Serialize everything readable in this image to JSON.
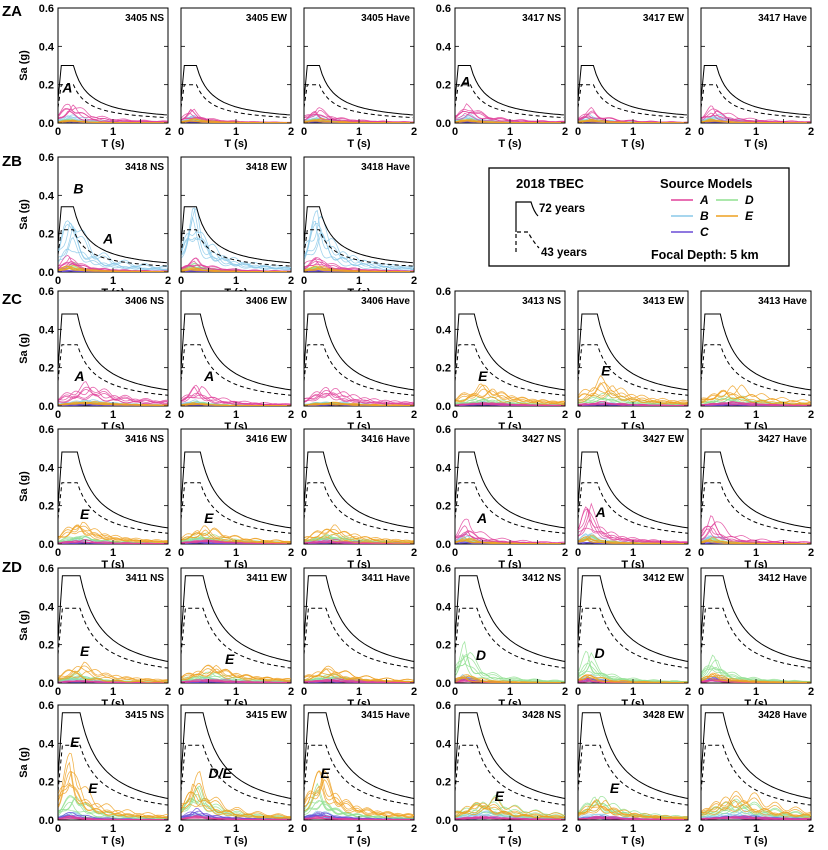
{
  "figure": {
    "sa_label": "Sa (g)",
    "t_label": "T (s)",
    "y_ticks": [
      "0.0",
      "0.2",
      "0.4",
      "0.6"
    ],
    "x_ticks": [
      "0",
      "1",
      "2"
    ],
    "zone_labels": [
      "ZA",
      "ZB",
      "ZC",
      "ZD"
    ]
  },
  "legend": {
    "title": "2018 TBEC",
    "label_72": "72 years",
    "label_43": "43 years",
    "source_title": "Source Models",
    "models": [
      {
        "label": "A",
        "color": "#e0409a"
      },
      {
        "label": "B",
        "color": "#8ac8e8"
      },
      {
        "label": "C",
        "color": "#6a4cd6"
      },
      {
        "label": "D",
        "color": "#90e090"
      },
      {
        "label": "E",
        "color": "#eea020"
      }
    ],
    "focal_depth": "Focal Depth: 5 km"
  },
  "chart_data": {
    "type": "line",
    "xlabel": "T (s)",
    "ylabel": "Sa (g)",
    "xlim": [
      0,
      2
    ],
    "ylim": [
      0,
      0.6
    ],
    "zones": [
      {
        "name": "ZA",
        "spec72": {
          "pga": 0.12,
          "sds": 0.3,
          "ta": 0.06,
          "tb": 0.28
        },
        "spec43": {
          "pga": 0.08,
          "sds": 0.2,
          "ta": 0.06,
          "tb": 0.28
        }
      },
      {
        "name": "ZB",
        "spec72": {
          "pga": 0.14,
          "sds": 0.34,
          "ta": 0.06,
          "tb": 0.28
        },
        "spec43": {
          "pga": 0.09,
          "sds": 0.22,
          "ta": 0.06,
          "tb": 0.28
        }
      },
      {
        "name": "ZC",
        "spec72": {
          "pga": 0.19,
          "sds": 0.48,
          "ta": 0.07,
          "tb": 0.35
        },
        "spec43": {
          "pga": 0.13,
          "sds": 0.32,
          "ta": 0.07,
          "tb": 0.35
        }
      },
      {
        "name": "ZD",
        "spec72": {
          "pga": 0.22,
          "sds": 0.56,
          "ta": 0.08,
          "tb": 0.4
        },
        "spec43": {
          "pga": 0.15,
          "sds": 0.39,
          "ta": 0.08,
          "tb": 0.4
        }
      }
    ],
    "panels": [
      {
        "zone": "ZA",
        "station": "3405 NS",
        "annotations": [
          {
            "text": "A",
            "t": 0.08,
            "sa": 0.16
          }
        ],
        "peaks": {
          "A": 0.1,
          "B": 0.04,
          "C": 0.01,
          "D": 0.02,
          "E": 0.02
        },
        "peak_t": 0.25
      },
      {
        "zone": "ZA",
        "station": "3405 EW",
        "annotations": [],
        "peaks": {
          "A": 0.07,
          "B": 0.04,
          "C": 0.01,
          "D": 0.02,
          "E": 0.02
        },
        "peak_t": 0.25
      },
      {
        "zone": "ZA",
        "station": "3405 Have",
        "annotations": [],
        "peaks": {
          "A": 0.1,
          "B": 0.04,
          "C": 0.01,
          "D": 0.02,
          "E": 0.02
        },
        "peak_t": 0.25
      },
      {
        "zone": "ZA",
        "station": "3417 NS",
        "annotations": [
          {
            "text": "A",
            "t": 0.1,
            "sa": 0.19
          }
        ],
        "peaks": {
          "A": 0.1,
          "B": 0.04,
          "C": 0.01,
          "D": 0.02,
          "E": 0.02
        },
        "peak_t": 0.25
      },
      {
        "zone": "ZA",
        "station": "3417 EW",
        "annotations": [],
        "peaks": {
          "A": 0.07,
          "B": 0.04,
          "C": 0.01,
          "D": 0.02,
          "E": 0.02
        },
        "peak_t": 0.25
      },
      {
        "zone": "ZA",
        "station": "3417 Have",
        "annotations": [],
        "peaks": {
          "A": 0.08,
          "B": 0.04,
          "C": 0.01,
          "D": 0.02,
          "E": 0.02
        },
        "peak_t": 0.25
      },
      {
        "zone": "ZB",
        "station": "3418 NS",
        "annotations": [
          {
            "text": "B",
            "t": 0.28,
            "sa": 0.41
          },
          {
            "text": "A",
            "t": 0.82,
            "sa": 0.15
          }
        ],
        "peaks": {
          "A": 0.09,
          "B": 0.3,
          "C": 0.01,
          "D": 0.04,
          "E": 0.03
        },
        "peak_t": 0.25
      },
      {
        "zone": "ZB",
        "station": "3418 EW",
        "annotations": [],
        "peaks": {
          "A": 0.09,
          "B": 0.28,
          "C": 0.01,
          "D": 0.04,
          "E": 0.03
        },
        "peak_t": 0.25
      },
      {
        "zone": "ZB",
        "station": "3418 Have",
        "annotations": [],
        "peaks": {
          "A": 0.09,
          "B": 0.28,
          "C": 0.01,
          "D": 0.04,
          "E": 0.03
        },
        "peak_t": 0.25
      },
      {
        "zone": "ZC",
        "station": "3406 NS",
        "annotations": [
          {
            "text": "A",
            "t": 0.3,
            "sa": 0.13
          }
        ],
        "peaks": {
          "A": 0.1,
          "B": 0.03,
          "C": 0.01,
          "D": 0.02,
          "E": 0.02
        },
        "peak_t": 0.55
      },
      {
        "zone": "ZC",
        "station": "3406 EW",
        "annotations": [
          {
            "text": "A",
            "t": 0.42,
            "sa": 0.13
          }
        ],
        "peaks": {
          "A": 0.1,
          "B": 0.03,
          "C": 0.01,
          "D": 0.02,
          "E": 0.02
        },
        "peak_t": 0.3
      },
      {
        "zone": "ZC",
        "station": "3406 Have",
        "annotations": [],
        "peaks": {
          "A": 0.09,
          "B": 0.03,
          "C": 0.01,
          "D": 0.02,
          "E": 0.02
        },
        "peak_t": 0.55
      },
      {
        "zone": "ZC",
        "station": "3413 NS",
        "annotations": [
          {
            "text": "E",
            "t": 0.42,
            "sa": 0.13
          }
        ],
        "peaks": {
          "A": 0.02,
          "B": 0.02,
          "C": 0.01,
          "D": 0.05,
          "E": 0.1
        },
        "peak_t": 0.55
      },
      {
        "zone": "ZC",
        "station": "3413 EW",
        "annotations": [
          {
            "text": "E",
            "t": 0.42,
            "sa": 0.16
          }
        ],
        "peaks": {
          "A": 0.02,
          "B": 0.02,
          "C": 0.01,
          "D": 0.06,
          "E": 0.14
        },
        "peak_t": 0.55
      },
      {
        "zone": "ZC",
        "station": "3413 Have",
        "annotations": [],
        "peaks": {
          "A": 0.02,
          "B": 0.02,
          "C": 0.01,
          "D": 0.05,
          "E": 0.11
        },
        "peak_t": 0.6
      },
      {
        "zone": "ZC",
        "station": "3416 NS",
        "annotations": [
          {
            "text": "E",
            "t": 0.4,
            "sa": 0.13
          }
        ],
        "peaks": {
          "A": 0.02,
          "B": 0.03,
          "C": 0.01,
          "D": 0.05,
          "E": 0.11
        },
        "peak_t": 0.45
      },
      {
        "zone": "ZC",
        "station": "3416 EW",
        "annotations": [
          {
            "text": "E",
            "t": 0.42,
            "sa": 0.11
          }
        ],
        "peaks": {
          "A": 0.02,
          "B": 0.03,
          "C": 0.01,
          "D": 0.05,
          "E": 0.08
        },
        "peak_t": 0.45
      },
      {
        "zone": "ZC",
        "station": "3416 Have",
        "annotations": [],
        "peaks": {
          "A": 0.02,
          "B": 0.03,
          "C": 0.01,
          "D": 0.05,
          "E": 0.08
        },
        "peak_t": 0.45
      },
      {
        "zone": "ZC",
        "station": "3427 NS",
        "annotations": [
          {
            "text": "A",
            "t": 0.4,
            "sa": 0.11
          }
        ],
        "peaks": {
          "A": 0.13,
          "B": 0.05,
          "C": 0.01,
          "D": 0.03,
          "E": 0.03
        },
        "peak_t": 0.2
      },
      {
        "zone": "ZC",
        "station": "3427 EW",
        "annotations": [
          {
            "text": "A",
            "t": 0.32,
            "sa": 0.14
          }
        ],
        "peaks": {
          "A": 0.2,
          "B": 0.06,
          "C": 0.01,
          "D": 0.04,
          "E": 0.04
        },
        "peak_t": 0.2
      },
      {
        "zone": "ZC",
        "station": "3427 Have",
        "annotations": [],
        "peaks": {
          "A": 0.15,
          "B": 0.05,
          "C": 0.01,
          "D": 0.03,
          "E": 0.03
        },
        "peak_t": 0.2
      },
      {
        "zone": "ZD",
        "station": "3411 NS",
        "annotations": [
          {
            "text": "E",
            "t": 0.4,
            "sa": 0.14
          }
        ],
        "peaks": {
          "A": 0.02,
          "B": 0.03,
          "C": 0.01,
          "D": 0.05,
          "E": 0.09
        },
        "peak_t": 0.4
      },
      {
        "zone": "ZD",
        "station": "3411 EW",
        "annotations": [
          {
            "text": "E",
            "t": 0.8,
            "sa": 0.1
          }
        ],
        "peaks": {
          "A": 0.02,
          "B": 0.03,
          "C": 0.01,
          "D": 0.05,
          "E": 0.1
        },
        "peak_t": 0.55
      },
      {
        "zone": "ZD",
        "station": "3411 Have",
        "annotations": [],
        "peaks": {
          "A": 0.02,
          "B": 0.03,
          "C": 0.01,
          "D": 0.05,
          "E": 0.08
        },
        "peak_t": 0.55
      },
      {
        "zone": "ZD",
        "station": "3412 NS",
        "annotations": [
          {
            "text": "D",
            "t": 0.38,
            "sa": 0.12
          }
        ],
        "peaks": {
          "A": 0.02,
          "B": 0.04,
          "C": 0.03,
          "D": 0.18,
          "E": 0.05
        },
        "peak_t": 0.2
      },
      {
        "zone": "ZD",
        "station": "3412 EW",
        "annotations": [
          {
            "text": "D",
            "t": 0.3,
            "sa": 0.13
          }
        ],
        "peaks": {
          "A": 0.02,
          "B": 0.04,
          "C": 0.03,
          "D": 0.15,
          "E": 0.06
        },
        "peak_t": 0.2
      },
      {
        "zone": "ZD",
        "station": "3412 Have",
        "annotations": [],
        "peaks": {
          "A": 0.02,
          "B": 0.04,
          "C": 0.03,
          "D": 0.14,
          "E": 0.05
        },
        "peak_t": 0.25
      },
      {
        "zone": "ZD",
        "station": "3415 NS",
        "annotations": [
          {
            "text": "E",
            "t": 0.22,
            "sa": 0.38
          },
          {
            "text": "E",
            "t": 0.55,
            "sa": 0.14
          }
        ],
        "peaks": {
          "A": 0.02,
          "B": 0.04,
          "C": 0.04,
          "D": 0.16,
          "E": 0.34
        },
        "peak_t": 0.25
      },
      {
        "zone": "ZD",
        "station": "3415 EW",
        "annotations": [
          {
            "text": "D/E",
            "t": 0.5,
            "sa": 0.22
          }
        ],
        "peaks": {
          "A": 0.02,
          "B": 0.04,
          "C": 0.05,
          "D": 0.18,
          "E": 0.22
        },
        "peak_t": 0.3
      },
      {
        "zone": "ZD",
        "station": "3415 Have",
        "annotations": [
          {
            "text": "E",
            "t": 0.3,
            "sa": 0.22
          }
        ],
        "peaks": {
          "A": 0.02,
          "B": 0.04,
          "C": 0.04,
          "D": 0.15,
          "E": 0.26
        },
        "peak_t": 0.3
      },
      {
        "zone": "ZD",
        "station": "3428 NS",
        "annotations": [
          {
            "text": "E",
            "t": 0.72,
            "sa": 0.1
          }
        ],
        "peaks": {
          "A": 0.02,
          "B": 0.04,
          "C": 0.02,
          "D": 0.1,
          "E": 0.11
        },
        "peak_t": 0.6
      },
      {
        "zone": "ZD",
        "station": "3428 EW",
        "annotations": [
          {
            "text": "E",
            "t": 0.58,
            "sa": 0.14
          }
        ],
        "peaks": {
          "A": 0.02,
          "B": 0.04,
          "C": 0.02,
          "D": 0.12,
          "E": 0.12
        },
        "peak_t": 0.4
      },
      {
        "zone": "ZD",
        "station": "3428 Have",
        "annotations": [],
        "peaks": {
          "A": 0.02,
          "B": 0.04,
          "C": 0.02,
          "D": 0.1,
          "E": 0.14
        },
        "peak_t": 0.7
      }
    ]
  }
}
